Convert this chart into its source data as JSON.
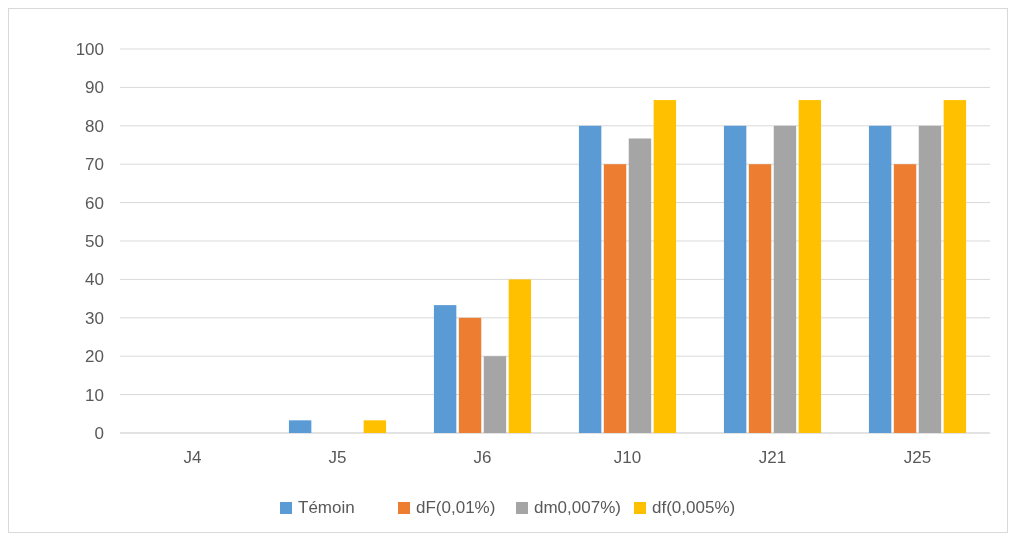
{
  "chart_data": {
    "type": "bar",
    "categories": [
      "J4",
      "J5",
      "J6",
      "J10",
      "J21",
      "J25"
    ],
    "series": [
      {
        "name": "Témoin",
        "color": "#5b9bd5",
        "values": [
          0,
          3.3,
          33.3,
          80,
          80,
          80
        ]
      },
      {
        "name": "dF(0,01%)",
        "color": "#ed7d31",
        "values": [
          0,
          0,
          30,
          70,
          70,
          70
        ]
      },
      {
        "name": "dm0,007%)",
        "color": "#a5a5a5",
        "values": [
          0,
          0,
          20,
          76.7,
          80,
          80
        ]
      },
      {
        "name": "df(0,005%)",
        "color": "#ffc000",
        "values": [
          0,
          3.3,
          40,
          86.7,
          86.7,
          86.7
        ]
      }
    ],
    "ylim": [
      0,
      100
    ],
    "yticks": [
      0,
      10,
      20,
      30,
      40,
      50,
      60,
      70,
      80,
      90,
      100
    ],
    "grid": "y",
    "legend": "bottom"
  }
}
